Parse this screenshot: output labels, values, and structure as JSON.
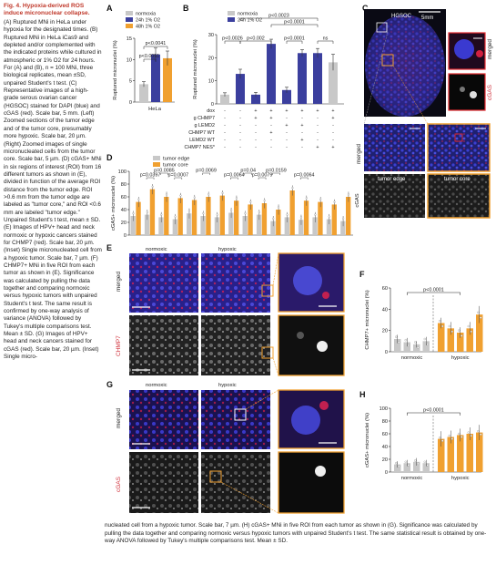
{
  "legend": {
    "title": "Fig. 4. Hypoxia-derived ROS induce micronuclear collapse.",
    "body": "(A) Ruptured MNi in HeLa under hypoxia for the designated times. (B) Ruptured MNi in HeLa iCas9 and depleted and/or complemented with the indicated proteins while cultured in atmospheric or 1% O2 for 24 hours. For (A) and (B), n = 100 MNi, three biological replicates, mean ±SD, unpaired Student's t test. (C) Representative images of a high-grade serous ovarian cancer (HGSOC) stained for DAPI (blue) and cGAS (red). Scale bar, 5 mm. (Left) Zoomed sections of the tumor edge and of the tumor core, presumably more hypoxic. Scale bar, 20 µm. (Right) Zoomed images of single micronucleated cells from the tumor core. Scale bar, 5 µm. (D) cGAS+ MNi in six regions of interest (ROI) from 16 different tumors as shown in (E), divided in function of the average ROI distance from the tumor edge. ROI >0.6 mm from the tumor edge are labeled as \"tumor core,\" and ROI <0.6 mm are labeled \"tumor edge.\" Unpaired Student's t test, mean ± SD. (E) Images of HPV+ head and neck normoxic or hypoxic cancers stained for CHMP7 (red). Scale bar, 20 µm. (Inset) Single micronucleated cell from a hypoxic tumor. Scale bar, 7 µm. (F) CHMP7+ MNi in five ROI from each tumor as shown in (E). Significance was calculated by pulling the data together and comparing normoxic versus hypoxic tumors with unpaired Student's t test. The same result is confirmed by one-way analysis of variance (ANOVA) followed by Tukey's multiple comparisons test. Mean ± SD. (G) Images of HPV+ head and neck cancers stained for cGAS (red). Scale bar, 20 µm. (Inset) Single micro-",
    "bottom": "nucleated cell from a hypoxic tumor. Scale bar, 7 µm. (H) cGAS+ MNi in five ROI from each tumor as shown in (G). Significance was calculated by pulling the data together and comparing normoxic versus hypoxic tumors with unpaired Student's t test. The same statistical result is obtained by one-way ANOVA followed by Tukey's multiple comparisons test. Mean ± SD."
  },
  "panels": {
    "A": "A",
    "B": "B",
    "C": "C",
    "D": "D",
    "E": "E",
    "F": "F",
    "G": "G",
    "H": "H"
  },
  "colors": {
    "normoxia": "#c8c8c8",
    "h24": "#3b3f9e",
    "h48": "#f0a030",
    "core": "#f0a030",
    "edge": "#c8c8c8",
    "red_label": "#d0303a"
  },
  "chart_data": [
    {
      "panel": "A",
      "type": "bar",
      "ylabel": "Ruptured micronuclei (%)",
      "ylim": [
        0,
        15
      ],
      "yticks": [
        "0",
        "5",
        "10",
        "15"
      ],
      "series_legend": [
        "normoxia",
        "24h 1% O2",
        "48h 1% O2"
      ],
      "categories": [
        "normoxia",
        "24h 1% O2",
        "48h 1% O2"
      ],
      "values": [
        4.2,
        11.2,
        10.3
      ],
      "errors": [
        0.6,
        1.5,
        1.7
      ],
      "xlabel": "HeLa",
      "annotations": [
        {
          "text": "p<0.0041",
          "between": [
            0,
            2
          ]
        },
        {
          "text": "p<0.0051",
          "between": [
            0,
            1
          ]
        }
      ]
    },
    {
      "panel": "B",
      "type": "bar",
      "ylabel": "Ruptured micronuclei (%)",
      "ylim": [
        0,
        30
      ],
      "yticks": [
        "0",
        "10",
        "20",
        "30"
      ],
      "series_legend": [
        "normoxia",
        "24h 1% O2"
      ],
      "values": [
        4.0,
        13.0,
        4.0,
        26.0,
        6.0,
        22.0,
        22.0,
        18.0
      ],
      "errors": [
        0.8,
        2.0,
        1.0,
        2.0,
        1.2,
        1.5,
        2.0,
        3.5
      ],
      "colors": [
        "normoxia",
        "h24",
        "h24",
        "h24",
        "h24",
        "h24",
        "h24",
        "normoxia"
      ],
      "condition_rows": [
        {
          "label": "dox",
          "marks": [
            "-",
            "-",
            "+",
            "+",
            "+",
            "+",
            "+",
            "+"
          ]
        },
        {
          "label": "g CHMP7",
          "marks": [
            "-",
            "-",
            "+",
            "+",
            "-",
            "-",
            "-",
            "+"
          ]
        },
        {
          "label": "g LEMD2",
          "marks": [
            "-",
            "-",
            "-",
            "-",
            "+",
            "+",
            "-",
            "-"
          ]
        },
        {
          "label": "CHMP7 WT",
          "marks": [
            "-",
            "-",
            "-",
            "+",
            "-",
            "-",
            "-",
            "-"
          ]
        },
        {
          "label": "LEMD2 WT",
          "marks": [
            "-",
            "-",
            "-",
            "-",
            "-",
            "+",
            "-",
            "-"
          ]
        },
        {
          "label": "CHMP7 NES*",
          "marks": [
            "-",
            "-",
            "-",
            "-",
            "-",
            "-",
            "+",
            "+"
          ]
        }
      ],
      "annotations": [
        {
          "text": "p<0.0023"
        },
        {
          "text": "p<0.0001"
        },
        {
          "text": "p<0.0026"
        },
        {
          "text": "p<0.002"
        },
        {
          "text": "p<0.0001"
        },
        {
          "text": "ns"
        }
      ]
    },
    {
      "panel": "D",
      "type": "bar",
      "ylabel": "cGAS+ micronuclei (%)",
      "ylim": [
        0,
        100
      ],
      "yticks": [
        "0",
        "20",
        "40",
        "60",
        "80",
        "100"
      ],
      "series_legend": [
        "tumor edge",
        "tumor core"
      ],
      "series": [
        {
          "name": "tumor edge",
          "values": [
            30,
            32,
            28,
            25,
            34,
            30,
            28,
            35,
            30,
            32,
            22,
            28,
            24,
            28,
            25,
            22
          ]
        },
        {
          "name": "tumor core",
          "values": [
            52,
            72,
            60,
            58,
            55,
            60,
            62,
            54,
            48,
            50,
            40,
            70,
            54,
            52,
            48,
            60
          ]
        }
      ],
      "annotations": [
        "p=0.0397",
        "p=0.0085",
        "p=0.0007",
        "p=0.0069",
        "p=0.0064",
        "p=0.04",
        "p=0.0079",
        "p=0.0159",
        "p=0.0064"
      ],
      "side_label": "cGAS"
    },
    {
      "panel": "F",
      "type": "bar",
      "ylabel": "CHMP7+ micronuclei (%)",
      "ylim": [
        0,
        60
      ],
      "yticks": [
        "0",
        "20",
        "40",
        "60"
      ],
      "groups": [
        "normoxic",
        "hypoxic"
      ],
      "values": [
        12,
        9,
        7,
        10,
        27,
        22,
        18,
        22,
        35
      ],
      "errors": [
        4,
        4,
        3,
        4,
        5,
        6,
        5,
        6,
        8
      ],
      "colors": [
        "normoxia",
        "normoxia",
        "normoxia",
        "normoxia",
        "core",
        "core",
        "core",
        "core",
        "core"
      ],
      "annotations": [
        {
          "text": "p<0.0001"
        }
      ]
    },
    {
      "panel": "H",
      "type": "bar",
      "ylabel": "cGAS+ micronuclei (%)",
      "ylim": [
        0,
        100
      ],
      "yticks": [
        "0",
        "20",
        "40",
        "60",
        "80",
        "100"
      ],
      "groups": [
        "normoxic",
        "hypoxic"
      ],
      "values": [
        12,
        14,
        16,
        14,
        52,
        55,
        58,
        60,
        62
      ],
      "errors": [
        5,
        5,
        6,
        5,
        12,
        10,
        10,
        10,
        12
      ],
      "colors": [
        "normoxia",
        "normoxia",
        "normoxia",
        "normoxia",
        "core",
        "core",
        "core",
        "core",
        "core"
      ],
      "annotations": [
        {
          "text": "p<0.0001"
        }
      ]
    }
  ],
  "micro": {
    "C": {
      "title": "HGSOC",
      "scale": "5mm",
      "merged": "merged",
      "cgas": "cGAS",
      "edge": "tumor edge",
      "core": "tumor core"
    },
    "E": {
      "normoxic": "normoxic",
      "hypoxic": "hypoxic",
      "merged": "merged",
      "chmp7": "CHMP7"
    },
    "G": {
      "normoxic": "normoxic",
      "hypoxic": "hypoxic",
      "merged": "merged",
      "cgas": "cGAS"
    }
  }
}
